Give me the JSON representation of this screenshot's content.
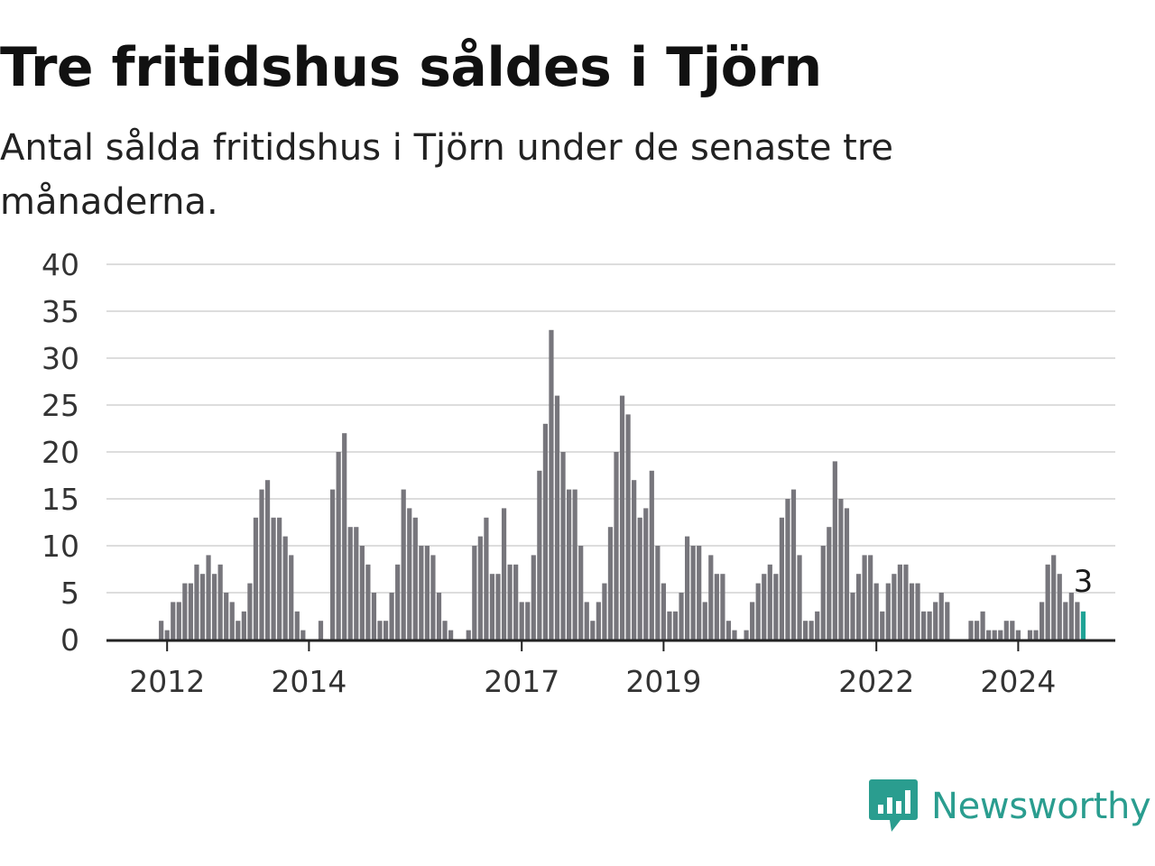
{
  "header": {
    "title": "Tre fritidshus såldes i Tjörn",
    "subtitle": "Antal sålda fritidshus i Tjörn under de senaste tre månaderna."
  },
  "brand": {
    "name": "Newsworthy",
    "icon": "newsworthy-logo-icon"
  },
  "colors": {
    "bar": "#77767c",
    "highlight": "#1fa396",
    "grid": "#dddddd",
    "axis": "#222222",
    "brand": "#2a9d8f"
  },
  "chart_data": {
    "type": "bar",
    "title": "Tre fritidshus såldes i Tjörn",
    "subtitle": "Antal sålda fritidshus i Tjörn under de senaste tre månaderna.",
    "xlabel": "",
    "ylabel": "",
    "ylim": [
      0,
      40
    ],
    "yticks": [
      0,
      5,
      10,
      15,
      20,
      25,
      30,
      35,
      40
    ],
    "xticks": [
      "2012",
      "2014",
      "2017",
      "2019",
      "2022",
      "2024"
    ],
    "grid": true,
    "start_month": "2011-11",
    "frequency": "monthly",
    "values": [
      0,
      2,
      1,
      4,
      4,
      6,
      6,
      8,
      7,
      9,
      7,
      8,
      5,
      4,
      2,
      3,
      6,
      13,
      16,
      17,
      13,
      13,
      11,
      9,
      3,
      1,
      0,
      0,
      2,
      0,
      16,
      20,
      22,
      12,
      12,
      10,
      8,
      5,
      2,
      2,
      5,
      8,
      16,
      14,
      13,
      10,
      10,
      9,
      5,
      2,
      1,
      0,
      0,
      1,
      10,
      11,
      13,
      7,
      7,
      14,
      8,
      8,
      4,
      4,
      9,
      18,
      23,
      33,
      26,
      20,
      16,
      16,
      10,
      4,
      2,
      4,
      6,
      12,
      20,
      26,
      24,
      17,
      13,
      14,
      18,
      10,
      6,
      3,
      3,
      5,
      11,
      10,
      10,
      4,
      9,
      7,
      7,
      2,
      1,
      0,
      1,
      4,
      6,
      7,
      8,
      7,
      13,
      15,
      16,
      9,
      2,
      2,
      3,
      10,
      12,
      19,
      15,
      14,
      5,
      7,
      9,
      9,
      6,
      3,
      6,
      7,
      8,
      8,
      6,
      6,
      3,
      3,
      4,
      5,
      4,
      0,
      0,
      0,
      2,
      2,
      3,
      1,
      1,
      1,
      2,
      2,
      1,
      0,
      1,
      1,
      4,
      8,
      9,
      7,
      4,
      5,
      4,
      3
    ],
    "highlight": {
      "label": "3",
      "value": 3
    }
  }
}
